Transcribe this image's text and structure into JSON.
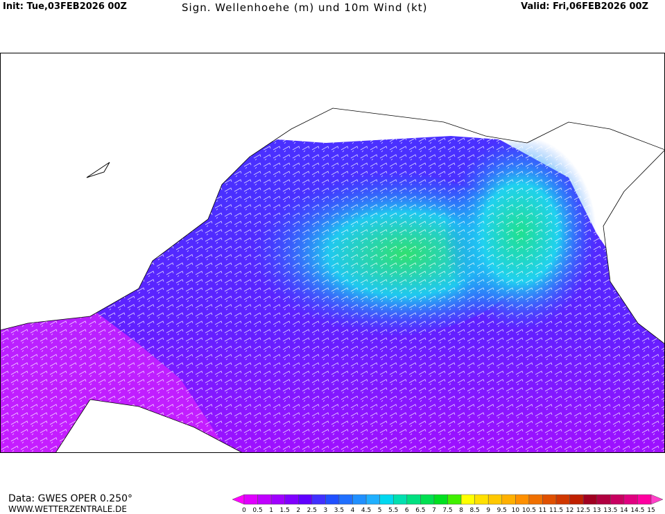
{
  "header": {
    "init": "Init: Tue,03FEB2026 00Z",
    "title": "Sign. Wellenhoehe (m) und 10m Wind (kt)",
    "valid": "Valid: Fri,06FEB2026 00Z"
  },
  "footer": {
    "source": "Data: GWES OPER 0.250°",
    "website": "WWW.WETTERZENTRALE.DE"
  },
  "colorbar": {
    "ticks": [
      0,
      0.5,
      1,
      1.5,
      2,
      2.5,
      3,
      3.5,
      4,
      4.5,
      5,
      5.5,
      6,
      6.5,
      7,
      7.5,
      8,
      8.5,
      9,
      9.5,
      10,
      10.5,
      11,
      11.5,
      12,
      12.5,
      13,
      13.5,
      14,
      14.5,
      15
    ],
    "colors": [
      "#ff00ff",
      "#e000ff",
      "#c000ff",
      "#a000ff",
      "#8000ff",
      "#6000ff",
      "#4030ff",
      "#2050ff",
      "#2070ff",
      "#2090ff",
      "#20b0ff",
      "#00d8f0",
      "#00e0b0",
      "#00e080",
      "#00e050",
      "#00e020",
      "#40f000",
      "#ffff00",
      "#ffe000",
      "#ffc800",
      "#ffb000",
      "#ff9000",
      "#f07000",
      "#e05000",
      "#d03800",
      "#c02000",
      "#a00020",
      "#b00040",
      "#c80060",
      "#e00080",
      "#ff00a0",
      "#ff40c8"
    ]
  }
}
